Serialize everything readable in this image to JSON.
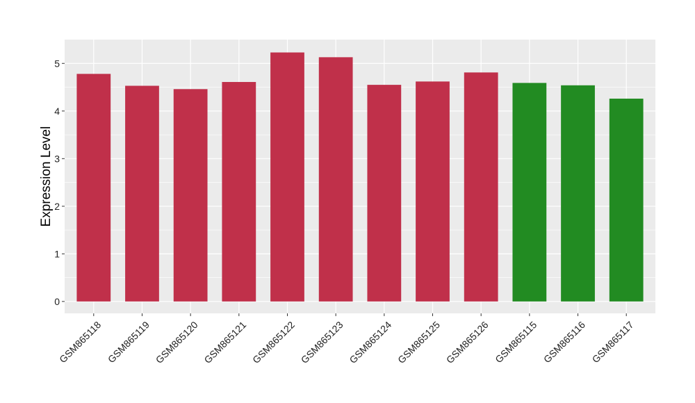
{
  "chart_data": {
    "type": "bar",
    "title": "",
    "xlabel": "",
    "ylabel": "Expression Level",
    "ylim": [
      -0.25,
      5.5
    ],
    "yticks": [
      0,
      1,
      2,
      3,
      4,
      5
    ],
    "grid": true,
    "legend": "none",
    "categories": [
      "GSM865118",
      "GSM865119",
      "GSM865120",
      "GSM865121",
      "GSM865122",
      "GSM865123",
      "GSM865124",
      "GSM865125",
      "GSM865126",
      "GSM865115",
      "GSM865116",
      "GSM865117"
    ],
    "values": [
      4.78,
      4.53,
      4.46,
      4.61,
      5.23,
      5.13,
      4.55,
      4.62,
      4.81,
      4.59,
      4.54,
      4.26
    ],
    "bar_colors": [
      "#C0304A",
      "#C0304A",
      "#C0304A",
      "#C0304A",
      "#C0304A",
      "#C0304A",
      "#C0304A",
      "#C0304A",
      "#C0304A",
      "#228B22",
      "#228B22",
      "#228B22"
    ],
    "panel_background": "#EBEBEB",
    "grid_color": "#FFFFFF"
  }
}
